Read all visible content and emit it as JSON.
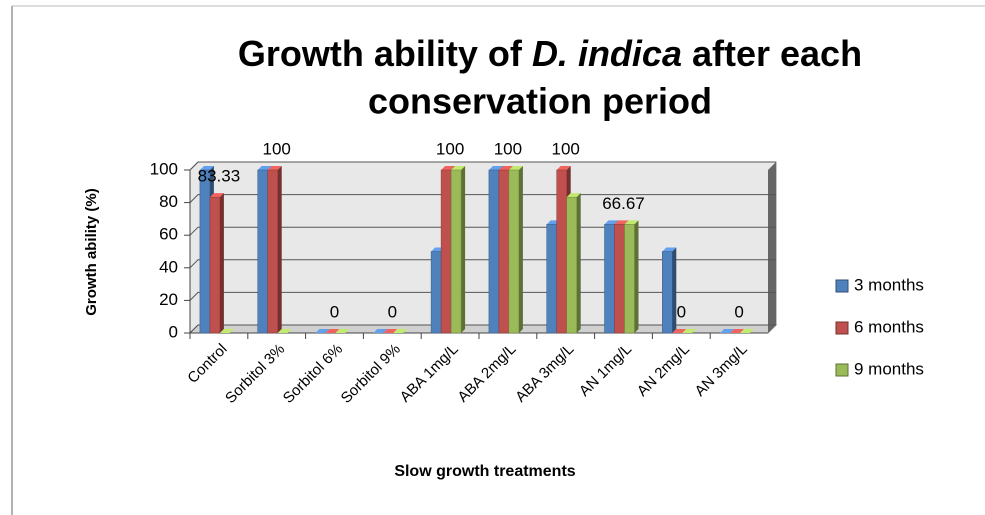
{
  "chart_data": {
    "type": "bar",
    "title": [
      "Growth ability of",
      "D. indica",
      "after each",
      "conservation period"
    ],
    "y_label": "Growth ability (%)",
    "x_label": "Slow growth treatments",
    "categories": [
      "Control",
      "Sorbitol 3%",
      "Sorbitol 6%",
      "Sorbitol 9%",
      "ABA 1mg/L",
      "ABA 2mg/L",
      "ABA 3mg/L",
      "AN 1mg/L",
      "AN 2mg/L",
      "AN 3mg/L"
    ],
    "series": [
      {
        "name": "3 months",
        "color": "#4f81bd",
        "values": [
          100,
          100,
          0,
          0,
          50,
          100,
          66.67,
          66.67,
          50,
          0
        ]
      },
      {
        "name": "6 months",
        "color": "#c0504d",
        "values": [
          83.33,
          100,
          0,
          0,
          100,
          100,
          100,
          66.67,
          0,
          0
        ],
        "data_labels": true
      },
      {
        "name": "9 months",
        "color": "#9bbb59",
        "values": [
          0,
          0,
          0,
          0,
          100,
          100,
          83.33,
          66.67,
          0,
          0
        ]
      }
    ],
    "ylim": [
      0,
      100
    ],
    "yticks": [
      0,
      20,
      40,
      60,
      80,
      100
    ],
    "grid": true,
    "legend": "right"
  }
}
